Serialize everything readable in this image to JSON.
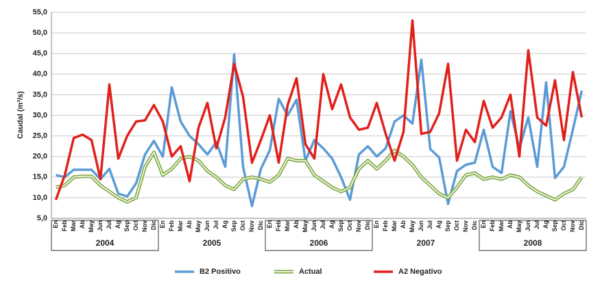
{
  "chart_data": {
    "type": "line",
    "y_label": "Caudal (m³/s)",
    "categories": [
      "En",
      "Feb",
      "Mar",
      "Ab",
      "May",
      "Jun",
      "Jul",
      "Ag",
      "Sep",
      "Oct",
      "Nov",
      "Dic",
      "En",
      "Feb",
      "Mar",
      "Ab",
      "May",
      "Jun",
      "Jul",
      "Ag",
      "Sep",
      "Oct",
      "Nov",
      "Dic",
      "En",
      "Feb",
      "Mar",
      "Ab",
      "May",
      "Jun",
      "Jul",
      "Ag",
      "Sep",
      "Oct",
      "Nov",
      "Dic",
      "En",
      "Feb",
      "Mar",
      "Ab",
      "May",
      "Jun",
      "Jul",
      "Ag",
      "Sep",
      "Oct",
      "Nov",
      "Dic",
      "En",
      "Feb",
      "Mar",
      "Ab",
      "May",
      "Jun",
      "Jul",
      "Ag",
      "Sep",
      "Oct",
      "Nov",
      "Dic"
    ],
    "years": [
      "2004",
      "2005",
      "2006",
      "2007",
      "2008"
    ],
    "ylim": [
      5,
      55
    ],
    "yticks": [
      {
        "value": 5,
        "label": "5,0"
      },
      {
        "value": 10,
        "label": "10,0"
      },
      {
        "value": 15,
        "label": "15,0"
      },
      {
        "value": 20,
        "label": "20,0"
      },
      {
        "value": 25,
        "label": "25,0"
      },
      {
        "value": 30,
        "label": "30,0"
      },
      {
        "value": 35,
        "label": "35,0"
      },
      {
        "value": 40,
        "label": "40,0"
      },
      {
        "value": 45,
        "label": "45,0"
      },
      {
        "value": 50,
        "label": "50,0"
      },
      {
        "value": 55,
        "label": "55,0"
      }
    ],
    "grid": true,
    "legend": "bottom",
    "series": [
      {
        "name": "B2 Positivo",
        "color": "#5b9bd5",
        "values": [
          15.5,
          15.0,
          16.8,
          16.8,
          16.8,
          14.5,
          17.0,
          11.0,
          10.3,
          13.5,
          20.5,
          23.8,
          20.0,
          36.8,
          28.5,
          25.0,
          23.0,
          20.5,
          23.5,
          17.5,
          44.8,
          17.5,
          8.0,
          17.0,
          21.5,
          34.0,
          30.0,
          33.8,
          19.0,
          24.0,
          22.0,
          19.5,
          15.0,
          9.5,
          20.5,
          22.5,
          20.0,
          22.0,
          28.5,
          30.0,
          28.0,
          43.5,
          21.8,
          19.8,
          8.5,
          16.5,
          18.0,
          18.5,
          26.5,
          17.5,
          16.0,
          31.0,
          22.0,
          29.5,
          17.5,
          38.0,
          14.8,
          17.5,
          26.5,
          36.0
        ]
      },
      {
        "name": "Actual",
        "color": "#77a33a",
        "line_style": "outlined",
        "values": [
          12.5,
          13.0,
          15.0,
          15.2,
          15.2,
          13.0,
          11.5,
          10.0,
          9.0,
          10.0,
          17.5,
          21.0,
          15.5,
          17.0,
          19.5,
          20.0,
          19.0,
          16.5,
          15.0,
          13.0,
          12.0,
          14.5,
          15.0,
          14.5,
          13.8,
          15.5,
          19.5,
          19.0,
          19.0,
          15.5,
          14.0,
          12.5,
          11.5,
          12.5,
          17.0,
          19.0,
          17.0,
          19.0,
          21.5,
          20.0,
          18.0,
          15.0,
          13.0,
          11.0,
          10.0,
          12.5,
          15.5,
          16.0,
          14.5,
          15.0,
          14.5,
          15.5,
          15.0,
          13.0,
          11.5,
          10.5,
          9.5,
          11.0,
          12.0,
          15.0
        ]
      },
      {
        "name": "A2 Negativo",
        "color": "#e0201b",
        "values": [
          9.5,
          15.5,
          24.5,
          25.3,
          24.0,
          14.5,
          37.5,
          19.5,
          25.0,
          28.5,
          28.8,
          32.5,
          28.5,
          20.0,
          22.5,
          14.0,
          27.0,
          33.0,
          22.0,
          29.5,
          42.5,
          34.5,
          18.5,
          24.0,
          30.0,
          18.5,
          32.5,
          39.0,
          23.0,
          19.5,
          40.0,
          31.5,
          37.5,
          29.5,
          26.5,
          27.0,
          33.0,
          25.5,
          19.0,
          26.0,
          53.0,
          25.5,
          26.0,
          30.5,
          42.5,
          19.0,
          26.5,
          23.5,
          33.5,
          27.0,
          29.5,
          35.0,
          20.0,
          45.8,
          29.5,
          27.5,
          38.5,
          24.0,
          40.5,
          29.5
        ]
      }
    ]
  }
}
